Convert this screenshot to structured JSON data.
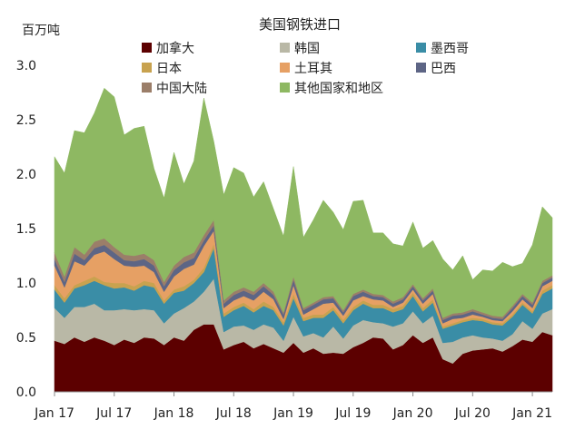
{
  "chart_data": {
    "type": "area",
    "stacked": true,
    "title": "美国钢铁进口",
    "ylabel": "百万吨",
    "xlabel": "",
    "ylim": [
      0,
      3.0
    ],
    "yticks": [
      0.0,
      0.5,
      1.0,
      1.5,
      2.0,
      2.5,
      3.0
    ],
    "ytick_labels": [
      "0.0",
      "0.5",
      "1.0",
      "1.5",
      "2.0",
      "2.5",
      "3.0"
    ],
    "x_months": [
      "2017-01",
      "2017-02",
      "2017-03",
      "2017-04",
      "2017-05",
      "2017-06",
      "2017-07",
      "2017-08",
      "2017-09",
      "2017-10",
      "2017-11",
      "2017-12",
      "2018-01",
      "2018-02",
      "2018-03",
      "2018-04",
      "2018-05",
      "2018-06",
      "2018-07",
      "2018-08",
      "2018-09",
      "2018-10",
      "2018-11",
      "2018-12",
      "2019-01",
      "2019-02",
      "2019-03",
      "2019-04",
      "2019-05",
      "2019-06",
      "2019-07",
      "2019-08",
      "2019-09",
      "2019-10",
      "2019-11",
      "2019-12",
      "2020-01",
      "2020-02",
      "2020-03",
      "2020-04",
      "2020-05",
      "2020-06",
      "2020-07",
      "2020-08",
      "2020-09",
      "2020-10",
      "2020-11",
      "2020-12",
      "2021-01",
      "2021-02",
      "2021-03"
    ],
    "xtick_indices": [
      0,
      6,
      12,
      18,
      24,
      30,
      36,
      42,
      48
    ],
    "xtick_labels": [
      "Jan 17",
      "Jul 17",
      "Jan 18",
      "Jul 18",
      "Jan 19",
      "Jul 19",
      "Jan 20",
      "Jul 20",
      "Jan 21"
    ],
    "legend": {
      "placement": "top",
      "columns": 3
    },
    "series": [
      {
        "name": "加拿大",
        "color": "#5c0000",
        "values": [
          0.47,
          0.44,
          0.5,
          0.46,
          0.5,
          0.47,
          0.43,
          0.48,
          0.45,
          0.5,
          0.49,
          0.43,
          0.5,
          0.47,
          0.57,
          0.62,
          0.62,
          0.39,
          0.43,
          0.46,
          0.4,
          0.44,
          0.4,
          0.36,
          0.45,
          0.36,
          0.4,
          0.35,
          0.36,
          0.35,
          0.41,
          0.45,
          0.5,
          0.49,
          0.39,
          0.43,
          0.52,
          0.45,
          0.5,
          0.3,
          0.26,
          0.35,
          0.38,
          0.39,
          0.4,
          0.37,
          0.42,
          0.48,
          0.46,
          0.55,
          0.52
        ]
      },
      {
        "name": "韩国",
        "color": "#b9b8a6",
        "values": [
          0.3,
          0.24,
          0.28,
          0.32,
          0.31,
          0.28,
          0.32,
          0.28,
          0.3,
          0.26,
          0.26,
          0.2,
          0.22,
          0.3,
          0.26,
          0.3,
          0.42,
          0.16,
          0.17,
          0.15,
          0.17,
          0.18,
          0.19,
          0.11,
          0.24,
          0.15,
          0.14,
          0.15,
          0.24,
          0.14,
          0.2,
          0.21,
          0.14,
          0.14,
          0.21,
          0.2,
          0.22,
          0.18,
          0.2,
          0.15,
          0.2,
          0.15,
          0.14,
          0.11,
          0.09,
          0.1,
          0.11,
          0.17,
          0.12,
          0.17,
          0.24
        ]
      },
      {
        "name": "墨西哥",
        "color": "#3a8da6",
        "values": [
          0.17,
          0.14,
          0.17,
          0.2,
          0.21,
          0.23,
          0.2,
          0.2,
          0.18,
          0.22,
          0.21,
          0.18,
          0.19,
          0.16,
          0.17,
          0.18,
          0.28,
          0.14,
          0.15,
          0.18,
          0.16,
          0.17,
          0.16,
          0.14,
          0.17,
          0.14,
          0.14,
          0.18,
          0.15,
          0.14,
          0.14,
          0.15,
          0.13,
          0.14,
          0.13,
          0.13,
          0.14,
          0.11,
          0.12,
          0.13,
          0.15,
          0.14,
          0.14,
          0.15,
          0.13,
          0.14,
          0.16,
          0.15,
          0.14,
          0.18,
          0.19
        ]
      },
      {
        "name": "日本",
        "color": "#c8a24f",
        "values": [
          0.04,
          0.04,
          0.03,
          0.04,
          0.04,
          0.03,
          0.05,
          0.04,
          0.04,
          0.04,
          0.04,
          0.03,
          0.03,
          0.04,
          0.03,
          0.04,
          0.04,
          0.03,
          0.03,
          0.03,
          0.03,
          0.04,
          0.03,
          0.03,
          0.04,
          0.03,
          0.03,
          0.03,
          0.03,
          0.03,
          0.03,
          0.03,
          0.03,
          0.03,
          0.03,
          0.03,
          0.03,
          0.03,
          0.03,
          0.02,
          0.02,
          0.02,
          0.02,
          0.02,
          0.02,
          0.02,
          0.02,
          0.02,
          0.02,
          0.03,
          0.03
        ]
      },
      {
        "name": "土耳其",
        "color": "#e6a064",
        "values": [
          0.18,
          0.1,
          0.22,
          0.14,
          0.2,
          0.28,
          0.22,
          0.16,
          0.18,
          0.14,
          0.1,
          0.08,
          0.12,
          0.16,
          0.14,
          0.2,
          0.12,
          0.05,
          0.06,
          0.06,
          0.08,
          0.09,
          0.07,
          0.03,
          0.08,
          0.03,
          0.05,
          0.1,
          0.04,
          0.04,
          0.06,
          0.04,
          0.05,
          0.04,
          0.02,
          0.03,
          0.03,
          0.04,
          0.05,
          0.03,
          0.04,
          0.02,
          0.03,
          0.02,
          0.02,
          0.02,
          0.03,
          0.03,
          0.03,
          0.04,
          0.04
        ]
      },
      {
        "name": "巴西",
        "color": "#5d6585",
        "values": [
          0.06,
          0.05,
          0.07,
          0.05,
          0.06,
          0.06,
          0.06,
          0.05,
          0.05,
          0.06,
          0.06,
          0.05,
          0.06,
          0.06,
          0.06,
          0.05,
          0.05,
          0.04,
          0.05,
          0.05,
          0.05,
          0.05,
          0.04,
          0.04,
          0.05,
          0.04,
          0.04,
          0.04,
          0.04,
          0.03,
          0.04,
          0.04,
          0.03,
          0.03,
          0.03,
          0.03,
          0.03,
          0.03,
          0.03,
          0.03,
          0.03,
          0.03,
          0.03,
          0.02,
          0.02,
          0.02,
          0.03,
          0.03,
          0.03,
          0.03,
          0.03
        ]
      },
      {
        "name": "中国大陆",
        "color": "#9b7e69",
        "values": [
          0.06,
          0.05,
          0.06,
          0.05,
          0.06,
          0.06,
          0.05,
          0.05,
          0.05,
          0.05,
          0.05,
          0.04,
          0.04,
          0.05,
          0.05,
          0.05,
          0.05,
          0.03,
          0.03,
          0.03,
          0.03,
          0.03,
          0.03,
          0.02,
          0.03,
          0.02,
          0.02,
          0.02,
          0.02,
          0.02,
          0.02,
          0.02,
          0.02,
          0.02,
          0.02,
          0.02,
          0.02,
          0.02,
          0.02,
          0.02,
          0.02,
          0.02,
          0.02,
          0.02,
          0.02,
          0.02,
          0.02,
          0.02,
          0.02,
          0.02,
          0.02
        ]
      },
      {
        "name": "其他国家和地区",
        "color": "#8eb862",
        "values": [
          0.88,
          0.95,
          1.07,
          1.12,
          1.18,
          1.38,
          1.38,
          1.1,
          1.17,
          1.17,
          0.84,
          0.77,
          1.04,
          0.67,
          0.84,
          1.26,
          0.72,
          0.97,
          1.14,
          1.05,
          0.87,
          0.93,
          0.76,
          0.7,
          1.01,
          0.65,
          0.76,
          0.89,
          0.77,
          0.74,
          0.85,
          0.82,
          0.56,
          0.57,
          0.53,
          0.47,
          0.57,
          0.46,
          0.44,
          0.54,
          0.4,
          0.52,
          0.27,
          0.39,
          0.41,
          0.5,
          0.36,
          0.28,
          0.53,
          0.68,
          0.53
        ]
      }
    ]
  }
}
